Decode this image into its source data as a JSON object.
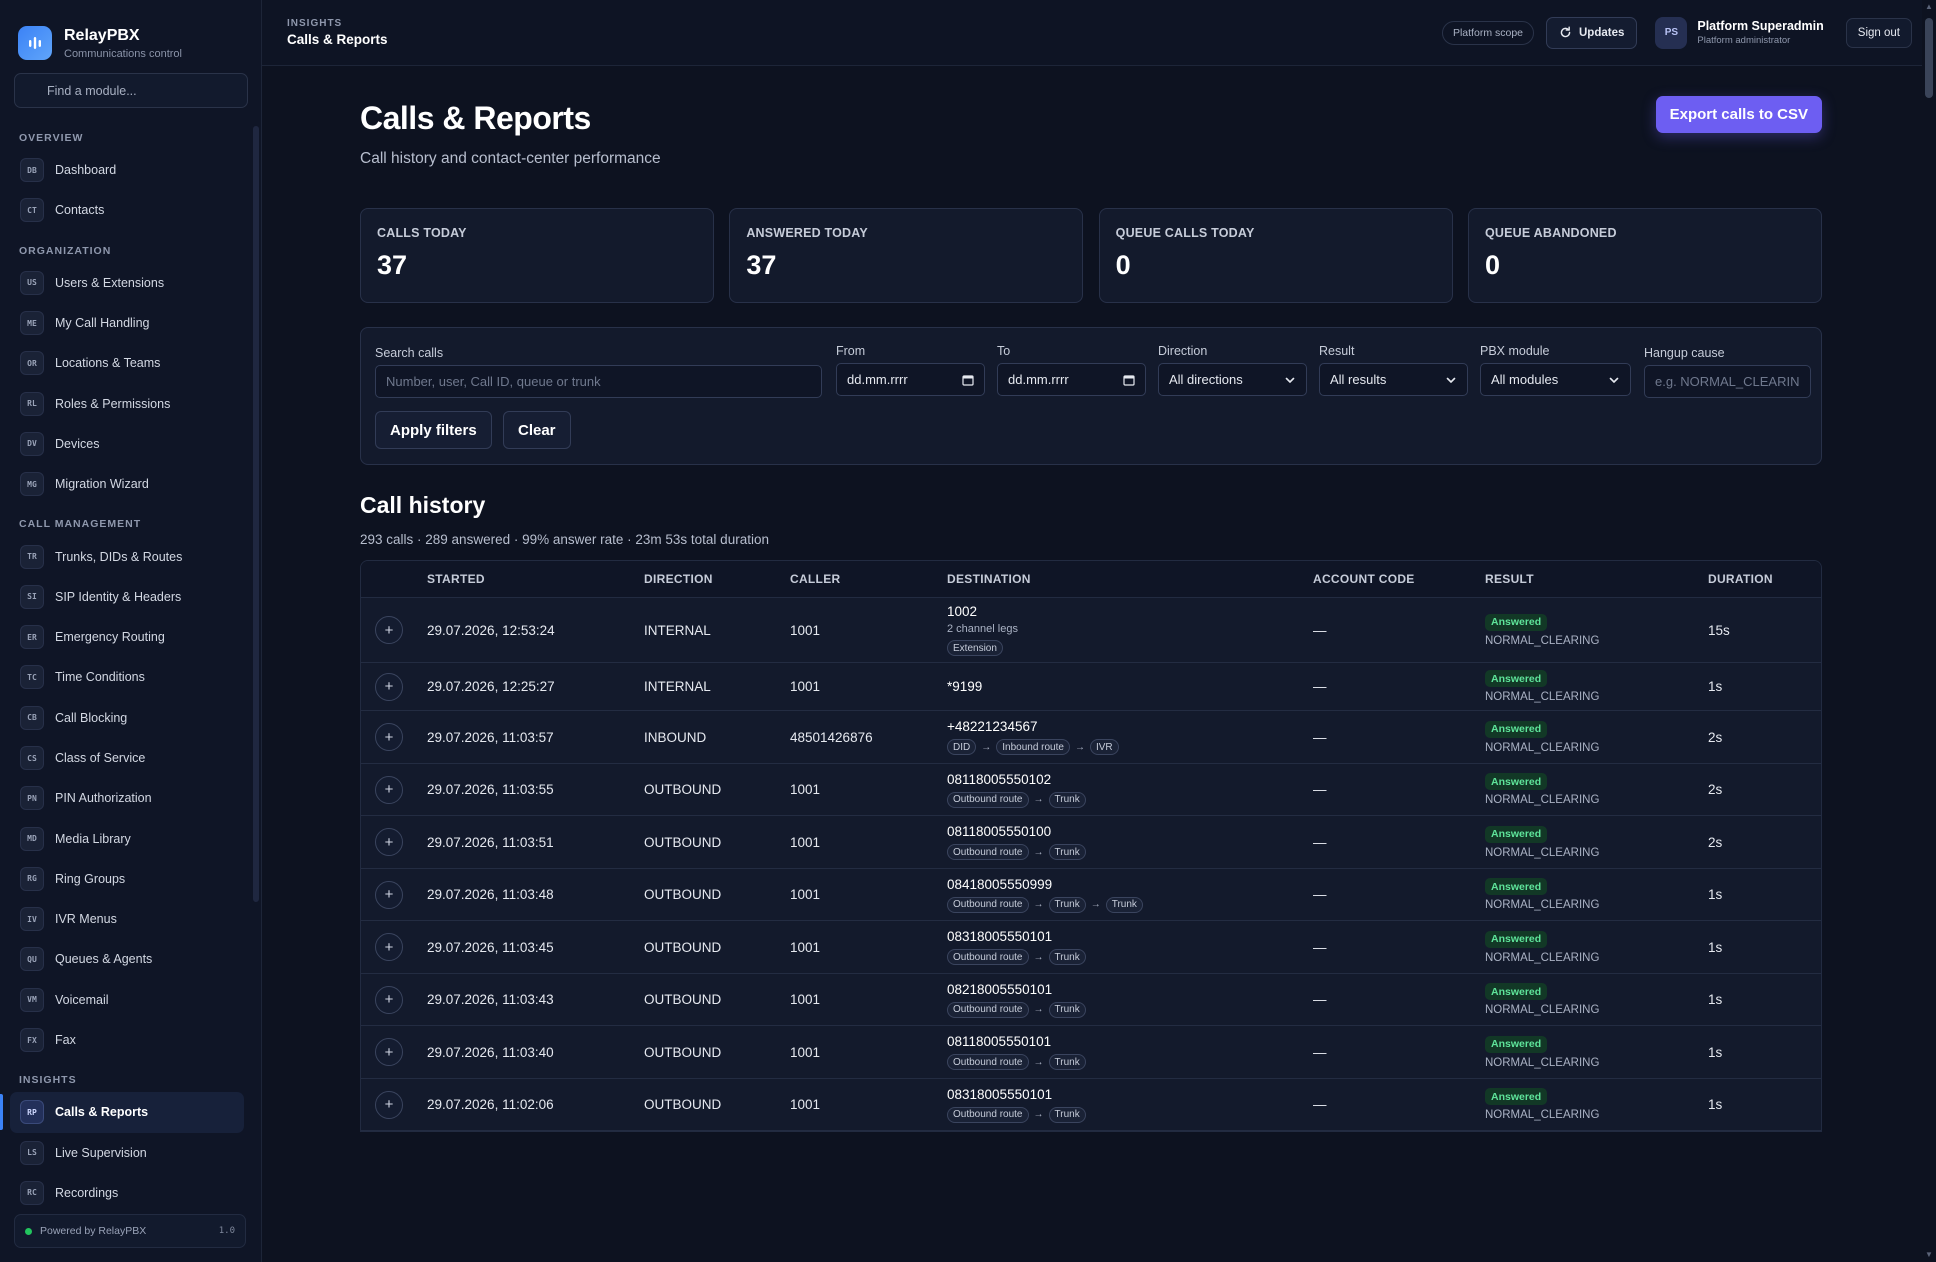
{
  "brand": {
    "name": "RelayPBX",
    "subtitle": "Communications control"
  },
  "module_search": {
    "placeholder": "Find a module..."
  },
  "sidebar": {
    "sections": [
      {
        "title": "OVERVIEW",
        "items": [
          {
            "abbr": "DB",
            "label": "Dashboard"
          },
          {
            "abbr": "CT",
            "label": "Contacts"
          }
        ]
      },
      {
        "title": "ORGANIZATION",
        "items": [
          {
            "abbr": "US",
            "label": "Users & Extensions"
          },
          {
            "abbr": "ME",
            "label": "My Call Handling"
          },
          {
            "abbr": "OR",
            "label": "Locations & Teams"
          },
          {
            "abbr": "RL",
            "label": "Roles & Permissions"
          },
          {
            "abbr": "DV",
            "label": "Devices"
          },
          {
            "abbr": "MG",
            "label": "Migration Wizard"
          }
        ]
      },
      {
        "title": "CALL MANAGEMENT",
        "items": [
          {
            "abbr": "TR",
            "label": "Trunks, DIDs & Routes"
          },
          {
            "abbr": "SI",
            "label": "SIP Identity & Headers"
          },
          {
            "abbr": "ER",
            "label": "Emergency Routing"
          },
          {
            "abbr": "TC",
            "label": "Time Conditions"
          },
          {
            "abbr": "CB",
            "label": "Call Blocking"
          },
          {
            "abbr": "CS",
            "label": "Class of Service"
          },
          {
            "abbr": "PN",
            "label": "PIN Authorization"
          },
          {
            "abbr": "MD",
            "label": "Media Library"
          },
          {
            "abbr": "RG",
            "label": "Ring Groups"
          },
          {
            "abbr": "IV",
            "label": "IVR Menus"
          },
          {
            "abbr": "QU",
            "label": "Queues & Agents"
          },
          {
            "abbr": "VM",
            "label": "Voicemail"
          },
          {
            "abbr": "FX",
            "label": "Fax"
          }
        ]
      },
      {
        "title": "INSIGHTS",
        "items": [
          {
            "abbr": "RP",
            "label": "Calls & Reports",
            "active": true
          },
          {
            "abbr": "LS",
            "label": "Live Supervision"
          },
          {
            "abbr": "RC",
            "label": "Recordings"
          }
        ]
      }
    ]
  },
  "powered": {
    "label": "Powered by RelayPBX",
    "version": "1.0"
  },
  "topbar": {
    "section": "INSIGHTS",
    "title": "Calls & Reports",
    "scope": "Platform scope",
    "updates": "Updates",
    "avatar": "PS",
    "user_name": "Platform Superadmin",
    "user_role": "Platform administrator",
    "sign_out": "Sign out"
  },
  "page": {
    "title": "Calls & Reports",
    "subtitle": "Call history and contact-center performance",
    "export": "Export calls to CSV"
  },
  "stats": [
    {
      "label": "CALLS TODAY",
      "value": "37"
    },
    {
      "label": "ANSWERED TODAY",
      "value": "37"
    },
    {
      "label": "QUEUE CALLS TODAY",
      "value": "0"
    },
    {
      "label": "QUEUE ABANDONED",
      "value": "0"
    }
  ],
  "filters": {
    "search_label": "Search calls",
    "search_placeholder": "Number, user, Call ID, queue or trunk",
    "from_label": "From",
    "from_value": "dd.mm.rrrr",
    "to_label": "To",
    "to_value": "dd.mm.rrrr",
    "direction_label": "Direction",
    "direction_value": "All directions",
    "result_label": "Result",
    "result_value": "All results",
    "module_label": "PBX module",
    "module_value": "All modules",
    "hangup_label": "Hangup cause",
    "hangup_placeholder": "e.g. NORMAL_CLEARING",
    "apply": "Apply filters",
    "clear": "Clear"
  },
  "history": {
    "title": "Call history",
    "summary": "293 calls · 289 answered · 99% answer rate · 23m 53s total duration",
    "columns": [
      "STARTED",
      "DIRECTION",
      "CALLER",
      "DESTINATION",
      "ACCOUNT CODE",
      "RESULT",
      "DURATION"
    ],
    "rows": [
      {
        "started": "29.07.2026, 12:53:24",
        "direction": "INTERNAL",
        "caller": "1001",
        "destination": "1002",
        "legs": "2 channel legs",
        "tags": [
          "Extension"
        ],
        "account": "—",
        "result": "Answered",
        "cause": "NORMAL_CLEARING",
        "duration": "15s"
      },
      {
        "started": "29.07.2026, 12:25:27",
        "direction": "INTERNAL",
        "caller": "1001",
        "destination": "*9199",
        "legs": "",
        "tags": [],
        "account": "—",
        "result": "Answered",
        "cause": "NORMAL_CLEARING",
        "duration": "1s"
      },
      {
        "started": "29.07.2026, 11:03:57",
        "direction": "INBOUND",
        "caller": "48501426876",
        "destination": "+48221234567",
        "legs": "",
        "tags": [
          "DID",
          "Inbound route",
          "IVR"
        ],
        "account": "—",
        "result": "Answered",
        "cause": "NORMAL_CLEARING",
        "duration": "2s"
      },
      {
        "started": "29.07.2026, 11:03:55",
        "direction": "OUTBOUND",
        "caller": "1001",
        "destination": "08118005550102",
        "legs": "",
        "tags": [
          "Outbound route",
          "Trunk"
        ],
        "account": "—",
        "result": "Answered",
        "cause": "NORMAL_CLEARING",
        "duration": "2s"
      },
      {
        "started": "29.07.2026, 11:03:51",
        "direction": "OUTBOUND",
        "caller": "1001",
        "destination": "08118005550100",
        "legs": "",
        "tags": [
          "Outbound route",
          "Trunk"
        ],
        "account": "—",
        "result": "Answered",
        "cause": "NORMAL_CLEARING",
        "duration": "2s"
      },
      {
        "started": "29.07.2026, 11:03:48",
        "direction": "OUTBOUND",
        "caller": "1001",
        "destination": "08418005550999",
        "legs": "",
        "tags": [
          "Outbound route",
          "Trunk",
          "Trunk"
        ],
        "account": "—",
        "result": "Answered",
        "cause": "NORMAL_CLEARING",
        "duration": "1s"
      },
      {
        "started": "29.07.2026, 11:03:45",
        "direction": "OUTBOUND",
        "caller": "1001",
        "destination": "08318005550101",
        "legs": "",
        "tags": [
          "Outbound route",
          "Trunk"
        ],
        "account": "—",
        "result": "Answered",
        "cause": "NORMAL_CLEARING",
        "duration": "1s"
      },
      {
        "started": "29.07.2026, 11:03:43",
        "direction": "OUTBOUND",
        "caller": "1001",
        "destination": "08218005550101",
        "legs": "",
        "tags": [
          "Outbound route",
          "Trunk"
        ],
        "account": "—",
        "result": "Answered",
        "cause": "NORMAL_CLEARING",
        "duration": "1s"
      },
      {
        "started": "29.07.2026, 11:03:40",
        "direction": "OUTBOUND",
        "caller": "1001",
        "destination": "08118005550101",
        "legs": "",
        "tags": [
          "Outbound route",
          "Trunk"
        ],
        "account": "—",
        "result": "Answered",
        "cause": "NORMAL_CLEARING",
        "duration": "1s"
      },
      {
        "started": "29.07.2026, 11:02:06",
        "direction": "OUTBOUND",
        "caller": "1001",
        "destination": "08318005550101",
        "legs": "",
        "tags": [
          "Outbound route",
          "Trunk"
        ],
        "account": "—",
        "result": "Answered",
        "cause": "NORMAL_CLEARING",
        "duration": "1s"
      }
    ]
  },
  "colors": {
    "accent": "#6d5ef2",
    "success": "#5ee49a",
    "background": "#0d1220"
  }
}
